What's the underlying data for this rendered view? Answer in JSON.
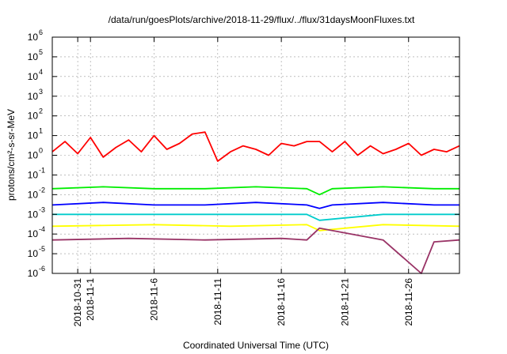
{
  "chart_data": {
    "type": "line",
    "title": "/data/run/goesPlots/archive/2018-11-29/flux/../flux/31daysMoonFluxes.txt",
    "xlabel": "Coordinated Universal Time (UTC)",
    "ylabel": "protons/cm²-s-sr-MeV",
    "y_scale": "log",
    "ylim": [
      1e-06,
      1000000.0
    ],
    "y_ticks": [
      {
        "base": "10",
        "exp": "-6"
      },
      {
        "base": "10",
        "exp": "-5"
      },
      {
        "base": "10",
        "exp": "-4"
      },
      {
        "base": "10",
        "exp": "-3"
      },
      {
        "base": "10",
        "exp": "-2"
      },
      {
        "base": "10",
        "exp": "-1"
      },
      {
        "base": "10",
        "exp": "0"
      },
      {
        "base": "10",
        "exp": "1"
      },
      {
        "base": "10",
        "exp": "2"
      },
      {
        "base": "10",
        "exp": "3"
      },
      {
        "base": "10",
        "exp": "4"
      },
      {
        "base": "10",
        "exp": "5"
      },
      {
        "base": "10",
        "exp": "6"
      }
    ],
    "xlim": [
      "2018-10-29",
      "2018-11-30"
    ],
    "x_ticks": [
      {
        "date": "2018-10-31",
        "label": "2018-10-31"
      },
      {
        "date": "2018-11-01",
        "label": "2018-11-1"
      },
      {
        "date": "2018-11-06",
        "label": "2018-11-6"
      },
      {
        "date": "2018-11-11",
        "label": "2018-11-11"
      },
      {
        "date": "2018-11-16",
        "label": "2018-11-16"
      },
      {
        "date": "2018-11-21",
        "label": "2018-11-21"
      },
      {
        "date": "2018-11-26",
        "label": "2018-11-26"
      }
    ],
    "grid": true,
    "series": [
      {
        "color": "#ff0000",
        "x": [
          "2018-10-29",
          "2018-10-30",
          "2018-10-31",
          "2018-11-01",
          "2018-11-02",
          "2018-11-03",
          "2018-11-04",
          "2018-11-05",
          "2018-11-06",
          "2018-11-07",
          "2018-11-08",
          "2018-11-09",
          "2018-11-10",
          "2018-11-11",
          "2018-11-12",
          "2018-11-13",
          "2018-11-14",
          "2018-11-15",
          "2018-11-16",
          "2018-11-17",
          "2018-11-18",
          "2018-11-19",
          "2018-11-20",
          "2018-11-21",
          "2018-11-22",
          "2018-11-23",
          "2018-11-24",
          "2018-11-25",
          "2018-11-26",
          "2018-11-27",
          "2018-11-28",
          "2018-11-29",
          "2018-11-30"
        ],
        "y": [
          1.5,
          5,
          1.2,
          8,
          0.8,
          2.5,
          6,
          1.5,
          10,
          2,
          4,
          12,
          15,
          0.5,
          1.5,
          3,
          2,
          1,
          4,
          3,
          5,
          5,
          1.5,
          5,
          1,
          3,
          1.2,
          2,
          4,
          1,
          2,
          1.5,
          3
        ]
      },
      {
        "color": "#00ee00",
        "x": [
          "2018-10-29",
          "2018-11-02",
          "2018-11-06",
          "2018-11-10",
          "2018-11-14",
          "2018-11-18",
          "2018-11-19",
          "2018-11-20",
          "2018-11-24",
          "2018-11-28",
          "2018-11-30"
        ],
        "y": [
          0.02,
          0.025,
          0.02,
          0.02,
          0.025,
          0.02,
          0.01,
          0.02,
          0.025,
          0.02,
          0.02
        ]
      },
      {
        "color": "#0000ff",
        "x": [
          "2018-10-29",
          "2018-11-02",
          "2018-11-06",
          "2018-11-10",
          "2018-11-14",
          "2018-11-18",
          "2018-11-19",
          "2018-11-20",
          "2018-11-24",
          "2018-11-28",
          "2018-11-30"
        ],
        "y": [
          0.003,
          0.004,
          0.003,
          0.003,
          0.004,
          0.003,
          0.002,
          0.003,
          0.004,
          0.003,
          0.003
        ]
      },
      {
        "color": "#00cccc",
        "x": [
          "2018-10-29",
          "2018-11-06",
          "2018-11-12",
          "2018-11-18",
          "2018-11-19",
          "2018-11-24",
          "2018-11-30"
        ],
        "y": [
          0.001,
          0.001,
          0.001,
          0.001,
          0.0005,
          0.001,
          0.001
        ]
      },
      {
        "color": "#ffff00",
        "x": [
          "2018-10-29",
          "2018-11-06",
          "2018-11-12",
          "2018-11-18",
          "2018-11-19",
          "2018-11-24",
          "2018-11-30"
        ],
        "y": [
          0.00025,
          0.0003,
          0.00025,
          0.0003,
          0.00015,
          0.0003,
          0.00025
        ]
      },
      {
        "color": "#993366",
        "x": [
          "2018-10-29",
          "2018-11-04",
          "2018-11-10",
          "2018-11-16",
          "2018-11-18",
          "2018-11-19",
          "2018-11-24",
          "2018-11-27",
          "2018-11-28",
          "2018-11-30"
        ],
        "y": [
          5e-05,
          6e-05,
          5e-05,
          6e-05,
          5e-05,
          0.0002,
          5e-05,
          1e-06,
          4e-05,
          5e-05
        ]
      }
    ]
  }
}
